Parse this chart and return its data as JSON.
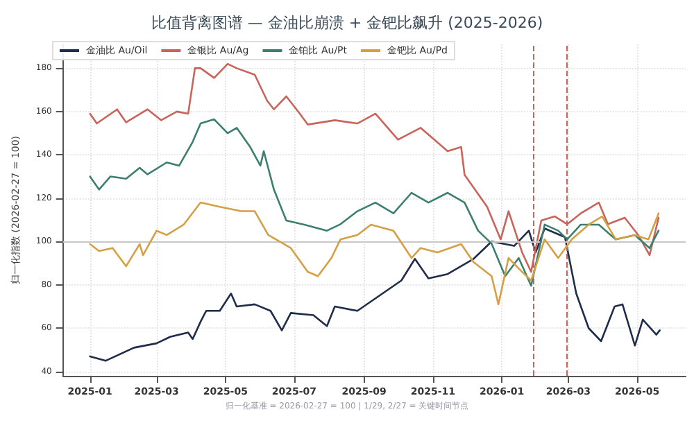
{
  "chart_data": {
    "type": "line",
    "title": "比值背离图谱 — 金油比崩溃 + 金钯比飙升 (2025-2026)",
    "ylabel": "归一化指数 (2026-02-27 = 100)",
    "xlim": [
      "2024-12-08",
      "2026-06-13"
    ],
    "xticks": [
      "2025-01",
      "2025-03",
      "2025-05",
      "2025-07",
      "2025-09",
      "2025-11",
      "2026-01",
      "2026-03",
      "2026-05"
    ],
    "ylim": [
      38,
      191
    ],
    "yticks": [
      40,
      60,
      80,
      100,
      120,
      140,
      160,
      180
    ],
    "grid": true,
    "legend": "top left",
    "marker": "none",
    "line_style": "solid",
    "series": [
      {
        "name": "金油比 Au/Oil",
        "color": "#1f2d4a",
        "x": [
          "2025-01-01",
          "2025-01-15",
          "2025-02-09",
          "2025-03-01",
          "2025-03-13",
          "2025-03-29",
          "2025-04-02",
          "2025-04-09",
          "2025-04-14",
          "2025-04-26",
          "2025-05-06",
          "2025-05-11",
          "2025-05-27",
          "2025-06-10",
          "2025-06-20",
          "2025-06-28",
          "2025-07-18",
          "2025-07-30",
          "2025-08-06",
          "2025-08-26",
          "2025-10-04",
          "2025-10-16",
          "2025-10-28",
          "2025-11-14",
          "2025-12-07",
          "2025-12-23",
          "2026-01-12",
          "2026-01-25",
          "2026-01-31",
          "2026-02-08",
          "2026-02-26",
          "2026-03-08",
          "2026-03-19",
          "2026-03-30",
          "2026-04-11",
          "2026-04-18",
          "2026-04-29",
          "2026-05-06",
          "2026-05-18",
          "2026-05-21"
        ],
        "values": [
          47,
          45,
          51,
          53,
          56,
          58,
          55,
          63,
          68,
          68,
          76,
          70,
          71,
          68,
          59,
          67,
          66,
          61,
          70,
          68,
          82,
          92,
          83,
          85,
          92,
          100,
          98,
          105,
          95,
          106,
          102,
          76,
          60,
          54,
          70,
          71,
          52,
          64,
          57,
          59
        ]
      },
      {
        "name": "金银比 Au/Ag",
        "color": "#c8645a",
        "x": [
          "2025-01-01",
          "2025-01-07",
          "2025-01-25",
          "2025-02-02",
          "2025-02-21",
          "2025-03-05",
          "2025-03-19",
          "2025-03-29",
          "2025-04-04",
          "2025-04-09",
          "2025-04-21",
          "2025-05-03",
          "2025-05-11",
          "2025-05-27",
          "2025-06-07",
          "2025-06-13",
          "2025-06-24",
          "2025-07-06",
          "2025-07-13",
          "2025-08-06",
          "2025-08-26",
          "2025-09-11",
          "2025-10-01",
          "2025-10-21",
          "2025-11-14",
          "2025-11-26",
          "2025-11-29",
          "2025-12-19",
          "2025-12-31",
          "2026-01-07",
          "2026-01-19",
          "2026-01-27",
          "2026-02-05",
          "2026-02-17",
          "2026-02-28",
          "2026-03-12",
          "2026-03-28",
          "2026-04-05",
          "2026-04-20",
          "2026-05-02",
          "2026-05-12",
          "2026-05-20"
        ],
        "values": [
          159,
          154.5,
          161,
          155,
          161,
          156,
          160,
          159,
          180,
          180,
          175.5,
          182,
          180,
          177,
          165,
          161,
          167,
          159,
          154,
          156,
          154.5,
          159,
          147,
          152.5,
          141.7,
          143.6,
          130.8,
          116,
          101,
          114,
          95,
          86,
          109.7,
          111.6,
          108,
          113,
          118,
          108,
          111,
          103,
          93.7,
          111
        ]
      },
      {
        "name": "金铂比 Au/Pt",
        "color": "#3d7f6e",
        "x": [
          "2025-01-01",
          "2025-01-09",
          "2025-01-19",
          "2025-02-02",
          "2025-02-14",
          "2025-02-21",
          "2025-03-10",
          "2025-03-21",
          "2025-04-02",
          "2025-04-09",
          "2025-04-21",
          "2025-05-03",
          "2025-05-11",
          "2025-05-23",
          "2025-06-01",
          "2025-06-04",
          "2025-06-13",
          "2025-06-24",
          "2025-07-10",
          "2025-07-30",
          "2025-08-11",
          "2025-08-26",
          "2025-09-11",
          "2025-09-27",
          "2025-10-13",
          "2025-10-28",
          "2025-11-14",
          "2025-11-29",
          "2025-12-11",
          "2025-12-23",
          "2026-01-04",
          "2026-01-16",
          "2026-01-27",
          "2026-02-08",
          "2026-02-20",
          "2026-02-28",
          "2026-03-12",
          "2026-03-28",
          "2026-04-12",
          "2026-04-29",
          "2026-05-12",
          "2026-05-20"
        ],
        "values": [
          130,
          124,
          130,
          129,
          134,
          131,
          136.5,
          135,
          146,
          154.5,
          156.4,
          150,
          152.5,
          143.6,
          135,
          141.7,
          124,
          109.7,
          107.8,
          105,
          108,
          114,
          118,
          113,
          122.5,
          118,
          122.5,
          118,
          105,
          99,
          84,
          92.4,
          79.6,
          107.8,
          105,
          101,
          107.8,
          107.8,
          101,
          103,
          97,
          105
        ]
      },
      {
        "name": "金钯比 Au/Pd",
        "color": "#d4a043",
        "x": [
          "2025-01-01",
          "2025-01-09",
          "2025-01-21",
          "2025-02-02",
          "2025-02-14",
          "2025-02-17",
          "2025-03-01",
          "2025-03-10",
          "2025-03-25",
          "2025-04-09",
          "2025-04-26",
          "2025-05-15",
          "2025-05-27",
          "2025-06-08",
          "2025-06-28",
          "2025-07-13",
          "2025-07-22",
          "2025-08-03",
          "2025-08-11",
          "2025-08-26",
          "2025-09-07",
          "2025-09-27",
          "2025-10-13",
          "2025-10-21",
          "2025-11-05",
          "2025-11-26",
          "2025-12-07",
          "2025-12-23",
          "2025-12-29",
          "2026-01-07",
          "2026-01-19",
          "2026-01-27",
          "2026-02-08",
          "2026-02-20",
          "2026-03-04",
          "2026-03-19",
          "2026-03-31",
          "2026-04-12",
          "2026-04-29",
          "2026-05-11",
          "2026-05-20"
        ],
        "values": [
          98.8,
          95.6,
          97,
          88.6,
          98.8,
          93.7,
          105,
          103,
          107.8,
          118,
          116,
          114,
          114,
          103,
          97,
          86,
          84,
          92.4,
          101,
          103,
          107.8,
          105,
          92.4,
          97,
          95,
          98.8,
          90.5,
          84,
          71,
          92.4,
          86,
          82,
          101,
          92.4,
          101,
          107.8,
          111.6,
          101,
          103,
          101,
          113
        ]
      }
    ],
    "ref_lines": [
      {
        "axis": "x",
        "value": "2026-01-29",
        "color": "#c8645a",
        "line_style": "dashed"
      },
      {
        "axis": "x",
        "value": "2026-02-27",
        "color": "#c8645a",
        "line_style": "dashed"
      },
      {
        "axis": "y",
        "value": 100,
        "color": "#c8c8c8",
        "line_style": "solid"
      }
    ],
    "annotations": [
      "归一化基准 = 2026-02-27 = 100 | 1/29, 2/27 = 关键时间节点"
    ]
  }
}
